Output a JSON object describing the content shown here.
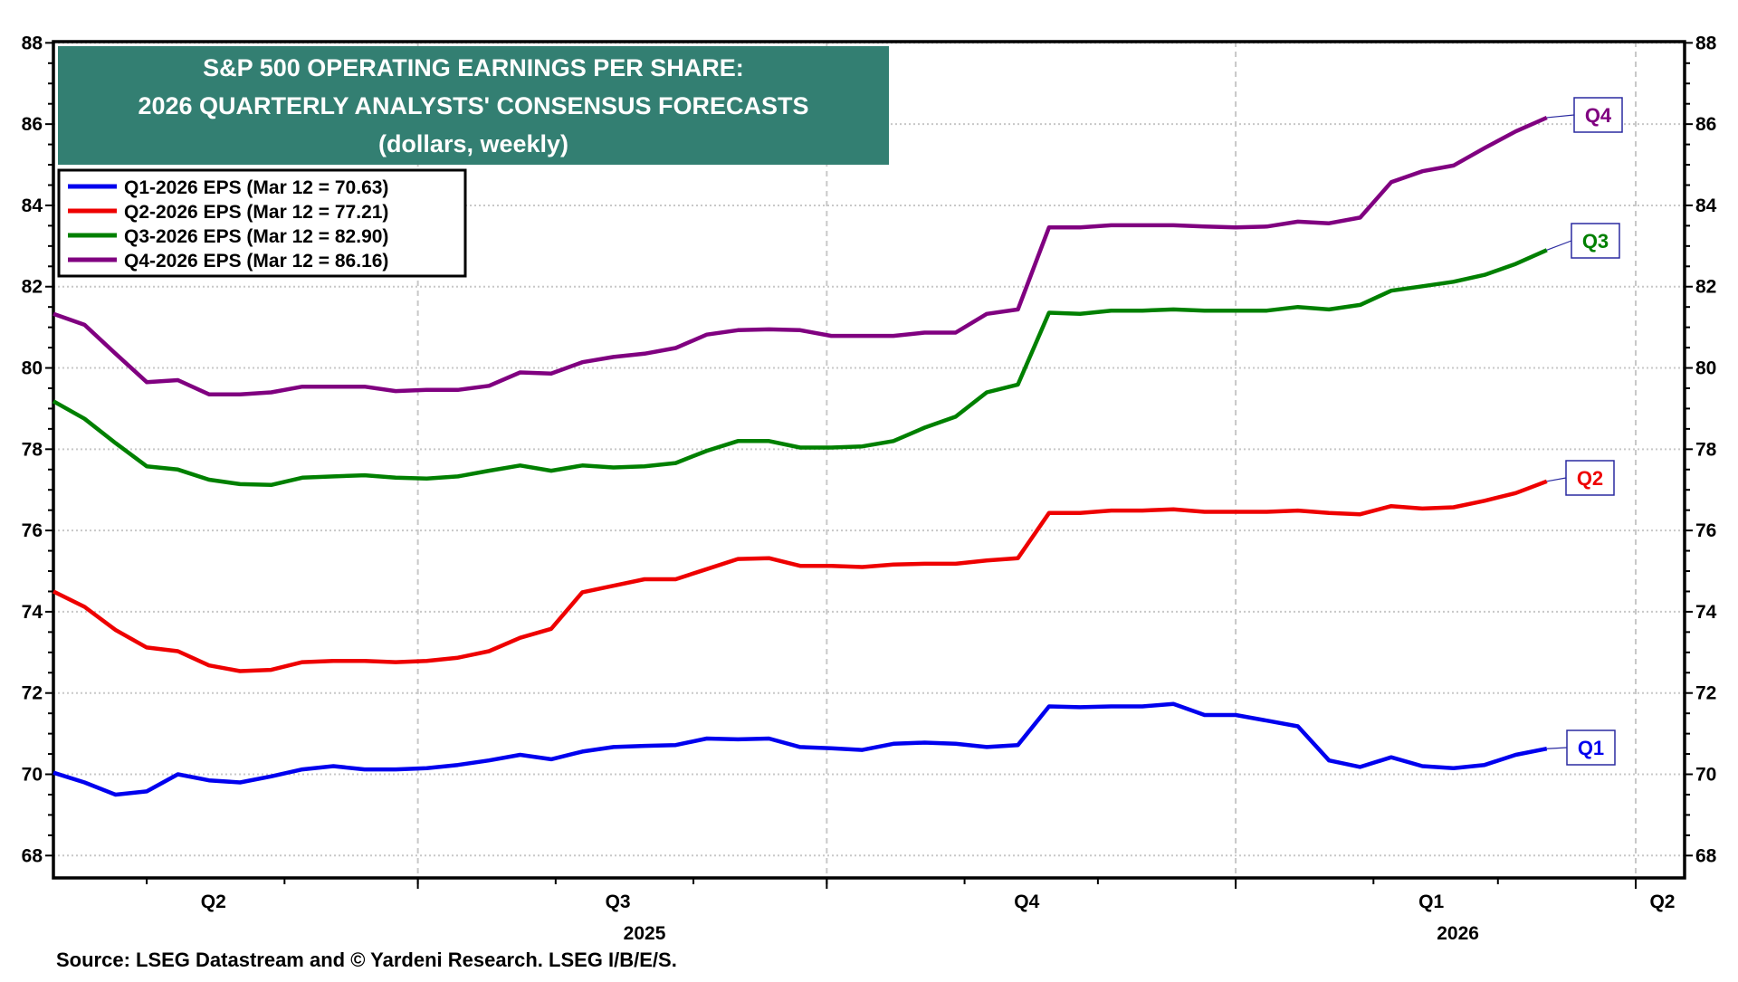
{
  "chart_data": {
    "type": "line",
    "title": "S&P 500 OPERATING EARNINGS PER SHARE:",
    "subtitle": "2026 QUARTERLY ANALYSTS' CONSENSUS FORECASTS",
    "units_note": "(dollars, weekly)",
    "source": "Source: LSEG Datastream and © Yardeni Research. LSEG I/B/E/S.",
    "ylim": [
      67.45,
      88.03
    ],
    "xlim": [
      "2025-04-10",
      "2026-04-12"
    ],
    "y_ticks": [
      "68",
      "70",
      "72",
      "74",
      "76",
      "78",
      "80",
      "82",
      "84",
      "86",
      "88"
    ],
    "x_quarter_labels": [
      {
        "label": "Q2",
        "date": "2025-05-16"
      },
      {
        "label": "Q3",
        "date": "2025-08-15"
      },
      {
        "label": "Q4",
        "date": "2025-11-15"
      },
      {
        "label": "Q1",
        "date": "2026-02-14"
      },
      {
        "label": "Q2",
        "date": "2026-04-07"
      }
    ],
    "x_year_labels": [
      {
        "label": "2025",
        "date": "2025-08-21"
      },
      {
        "label": "2026",
        "date": "2026-02-20"
      }
    ],
    "quarter_gridlines": [
      "2025-07-01",
      "2025-10-01",
      "2026-01-01",
      "2026-04-01"
    ],
    "grid": true,
    "legend_placement": "top-left",
    "x_start": "2025-04-10",
    "x_frequency": "weekly",
    "series": [
      {
        "name": "Q1-2026 EPS (Mar 12 = 70.63)",
        "tag": "Q1",
        "color": "#0000ee",
        "values": [
          70.04,
          69.8,
          69.5,
          69.58,
          70.0,
          69.85,
          69.8,
          69.95,
          70.12,
          70.2,
          70.12,
          70.12,
          70.15,
          70.23,
          70.34,
          70.48,
          70.37,
          70.56,
          70.67,
          70.7,
          70.72,
          70.88,
          70.86,
          70.88,
          70.67,
          70.64,
          70.6,
          70.75,
          70.78,
          70.75,
          70.67,
          70.72,
          71.67,
          71.65,
          71.67,
          71.67,
          71.73,
          71.46,
          71.46,
          71.32,
          71.18,
          70.34,
          70.18,
          70.42,
          70.2,
          70.15,
          70.23,
          70.48,
          70.63
        ]
      },
      {
        "name": "Q2-2026 EPS (Mar 12 = 77.21)",
        "tag": "Q2",
        "color": "#ee0000",
        "values": [
          74.5,
          74.12,
          73.55,
          73.12,
          73.03,
          72.68,
          72.54,
          72.57,
          72.76,
          72.79,
          72.79,
          72.76,
          72.79,
          72.87,
          73.03,
          73.36,
          73.58,
          74.48,
          74.64,
          74.8,
          74.8,
          75.05,
          75.3,
          75.32,
          75.13,
          75.13,
          75.1,
          75.16,
          75.18,
          75.18,
          75.26,
          75.32,
          76.43,
          76.43,
          76.49,
          76.49,
          76.52,
          76.46,
          76.46,
          76.46,
          76.49,
          76.43,
          76.4,
          76.6,
          76.54,
          76.57,
          76.73,
          76.92,
          77.21
        ]
      },
      {
        "name": "Q3-2026 EPS (Mar 12 = 82.90)",
        "tag": "Q3",
        "color": "#008000",
        "values": [
          79.18,
          78.75,
          78.15,
          77.58,
          77.5,
          77.25,
          77.14,
          77.12,
          77.3,
          77.33,
          77.36,
          77.3,
          77.28,
          77.33,
          77.47,
          77.6,
          77.47,
          77.6,
          77.55,
          77.58,
          77.66,
          77.96,
          78.2,
          78.2,
          78.04,
          78.04,
          78.07,
          78.2,
          78.53,
          78.8,
          79.4,
          79.59,
          81.36,
          81.33,
          81.41,
          81.41,
          81.44,
          81.41,
          81.41,
          81.41,
          81.5,
          81.44,
          81.55,
          81.9,
          82.01,
          82.12,
          82.29,
          82.56,
          82.9
        ]
      },
      {
        "name": "Q4-2026 EPS (Mar 12 = 86.16)",
        "tag": "Q4",
        "color": "#800080",
        "values": [
          81.33,
          81.06,
          80.35,
          79.65,
          79.7,
          79.35,
          79.35,
          79.4,
          79.54,
          79.54,
          79.54,
          79.43,
          79.46,
          79.46,
          79.56,
          79.89,
          79.86,
          80.14,
          80.27,
          80.35,
          80.49,
          80.82,
          80.93,
          80.95,
          80.93,
          80.79,
          80.79,
          80.79,
          80.87,
          80.87,
          81.33,
          81.44,
          83.46,
          83.46,
          83.51,
          83.51,
          83.51,
          83.48,
          83.46,
          83.48,
          83.6,
          83.56,
          83.7,
          84.57,
          84.84,
          84.98,
          85.41,
          85.82,
          86.16
        ]
      }
    ],
    "colors": {
      "title_bg": "#337f72",
      "title_text": "#ffffff",
      "tag_border": "#2a2aa0",
      "grid": "#c8c8c8"
    }
  }
}
